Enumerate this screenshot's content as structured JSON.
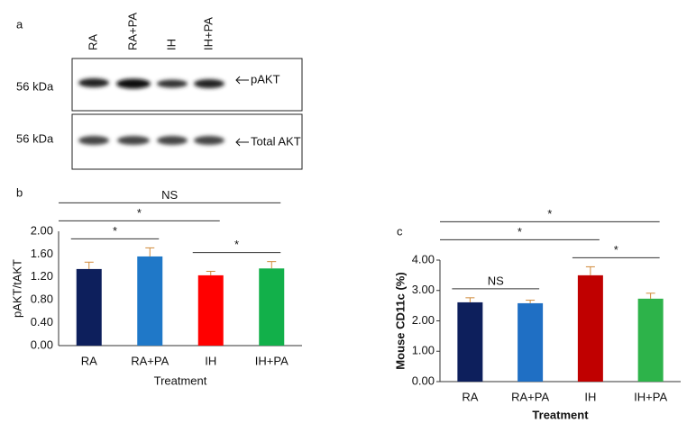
{
  "blot": {
    "panel": "a",
    "lanes": [
      "RA",
      "RA+PA",
      "IH",
      "IH+PA"
    ],
    "rows": [
      {
        "size": "56 kDa",
        "label": "pAKT"
      },
      {
        "size": "56 kDa",
        "label": "Total AKT"
      }
    ]
  },
  "chart_data": [
    {
      "type": "bar",
      "panel": "b",
      "y_label": "pAKT/tAKT",
      "x_label": "Treatment",
      "categories": [
        "RA",
        "RA+PA",
        "IH",
        "IH+PA"
      ],
      "values": [
        1.34,
        1.56,
        1.23,
        1.35
      ],
      "errors": [
        0.12,
        0.15,
        0.07,
        0.12
      ],
      "colors": [
        "#0d1f5c",
        "#1f78c8",
        "#ff0000",
        "#12b04a"
      ],
      "ylim": [
        0,
        2
      ],
      "yticks": [
        {
          "value": 0,
          "label": "0.00"
        },
        {
          "value": 0.4,
          "label": "0.40"
        },
        {
          "value": 0.8,
          "label": "0.80"
        },
        {
          "value": 1.2,
          "label": "1.20"
        },
        {
          "value": 1.6,
          "label": "1.60"
        },
        {
          "value": 2,
          "label": "2.00"
        }
      ],
      "annotations": [
        {
          "label": "*",
          "from": "RA",
          "to": "RA+PA"
        },
        {
          "label": "*",
          "from": "IH",
          "to": "IH+PA"
        },
        {
          "label": "*",
          "from": "RA",
          "to": "IH"
        },
        {
          "label": "NS",
          "from": "RA",
          "to": "IH+PA"
        }
      ]
    },
    {
      "type": "bar",
      "panel": "c",
      "y_label": "Mouse CD11c (%)",
      "x_label": "Treatment",
      "categories": [
        "RA",
        "RA+PA",
        "IH",
        "IH+PA"
      ],
      "values": [
        2.61,
        2.58,
        3.5,
        2.73
      ],
      "errors": [
        0.15,
        0.1,
        0.28,
        0.18
      ],
      "colors": [
        "#0d1f5c",
        "#1f6fc4",
        "#c00000",
        "#2db34a"
      ],
      "ylim": [
        0,
        4
      ],
      "yticks": [
        {
          "value": 0,
          "label": "0.00"
        },
        {
          "value": 1,
          "label": "1.00"
        },
        {
          "value": 2,
          "label": "2.00"
        },
        {
          "value": 3,
          "label": "3.00"
        },
        {
          "value": 4,
          "label": "4.00"
        }
      ],
      "annotations": [
        {
          "label": "NS",
          "from": "RA",
          "to": "RA+PA"
        },
        {
          "label": "*",
          "from": "IH",
          "to": "IH+PA"
        },
        {
          "label": "*",
          "from": "RA",
          "to": "IH"
        },
        {
          "label": "*",
          "from": "RA",
          "to": "IH+PA"
        }
      ]
    }
  ]
}
